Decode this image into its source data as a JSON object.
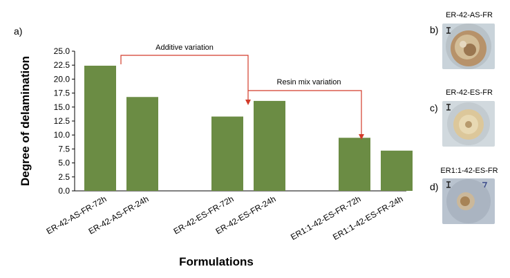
{
  "chart_data": {
    "type": "bar",
    "panel_label": "a)",
    "xlabel": "Formulations",
    "ylabel": "Degree of delamination",
    "ylim": [
      0,
      25
    ],
    "yticks": [
      "0.0",
      "2.5",
      "5.0",
      "7.5",
      "10.0",
      "12.5",
      "15.0",
      "17.5",
      "20.0",
      "22.5",
      "25.0"
    ],
    "categories": [
      "ER-42-AS-FR-72h",
      "ER-42-AS-FR-24h",
      "ER-42-ES-FR-72h",
      "ER-42-ES-FR-24h",
      "ER1:1-42-ES-FR-72h",
      "ER1:1-42-ES-FR-24h"
    ],
    "groups": [
      [
        0,
        1
      ],
      [
        2,
        3
      ],
      [
        4,
        5
      ]
    ],
    "values": [
      22.4,
      16.8,
      13.3,
      16.1,
      9.5,
      7.2
    ],
    "bar_color": "#6b8c44",
    "annotation_color": "#d23b2a",
    "annotations": [
      {
        "text": "Additive variation"
      },
      {
        "text": "Resin mix variation"
      }
    ]
  },
  "photos": [
    {
      "label": "b)",
      "title": "ER-42-AS-FR"
    },
    {
      "label": "c)",
      "title": "ER-42-ES-FR"
    },
    {
      "label": "d)",
      "title": "ER1:1-42-ES-FR"
    }
  ]
}
